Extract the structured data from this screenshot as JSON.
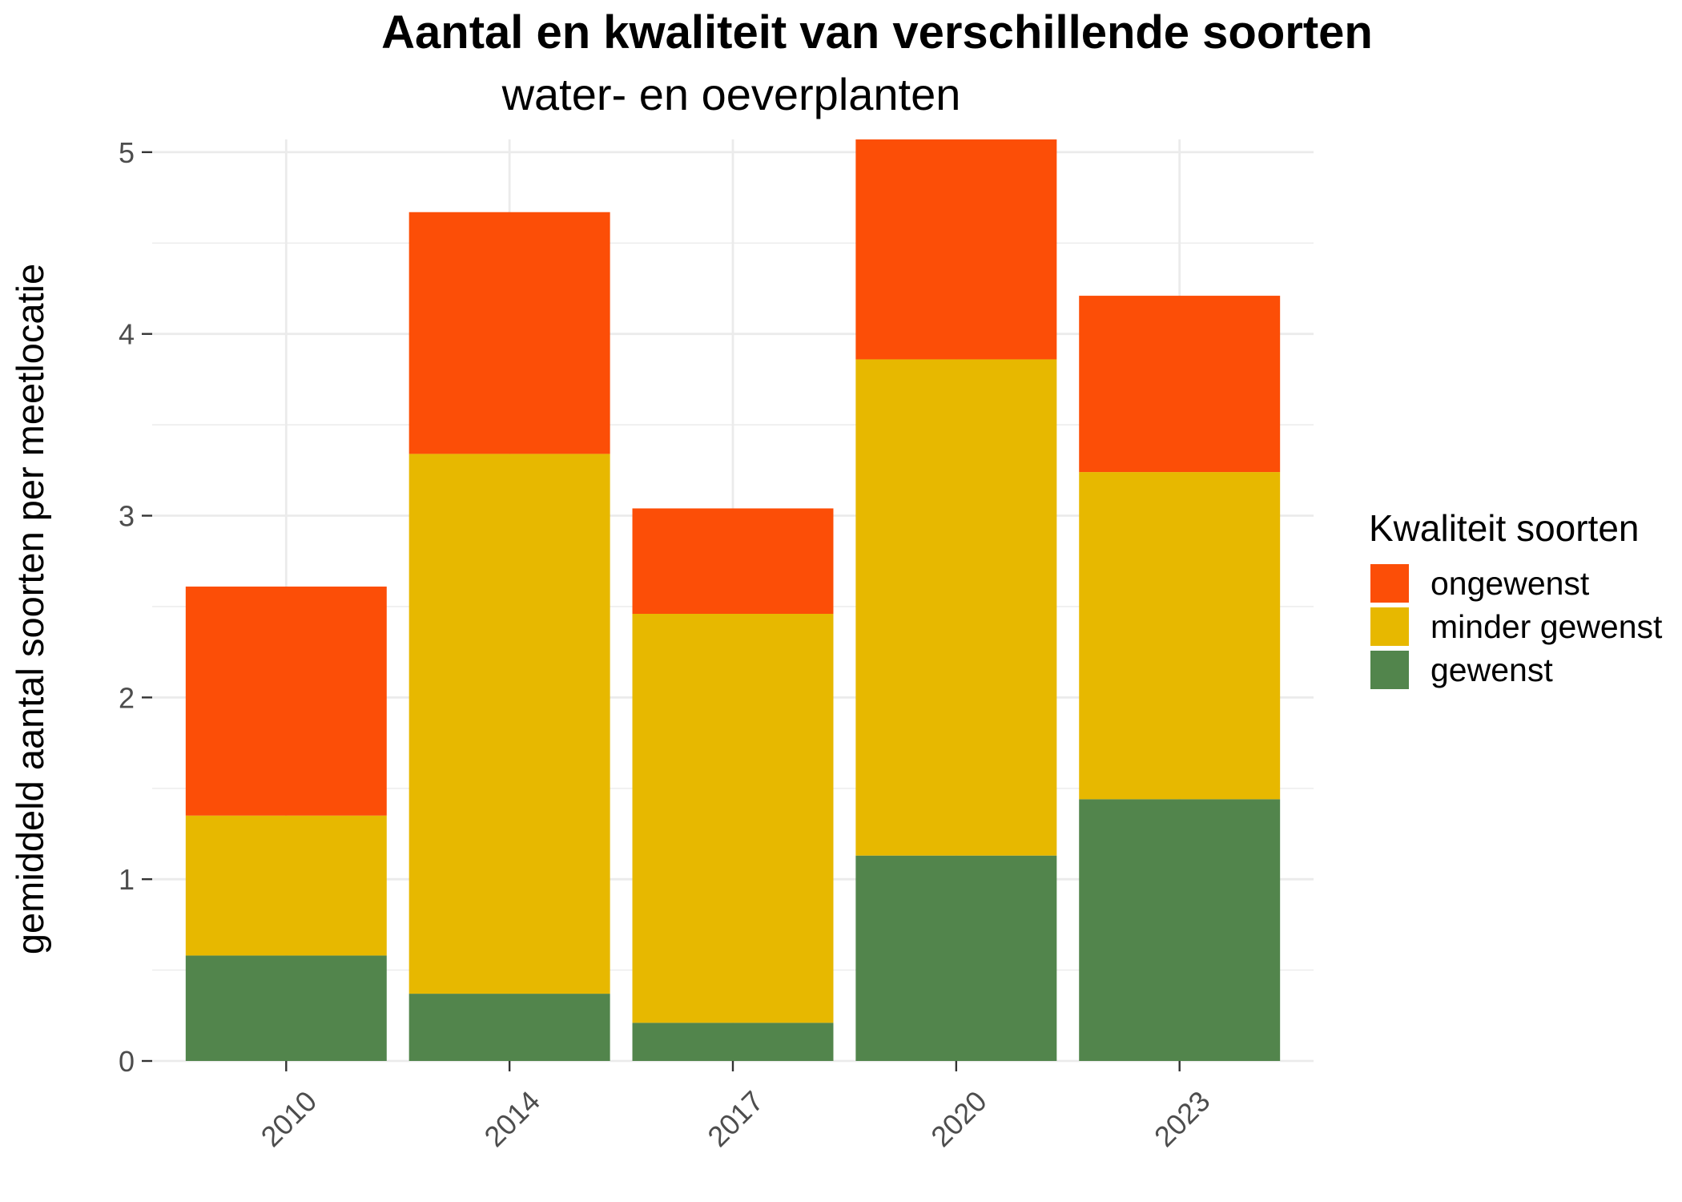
{
  "chart_data": {
    "type": "bar",
    "stacked": true,
    "title": "Aantal en kwaliteit van verschillende soorten",
    "subtitle": "water- en oeverplanten",
    "ylabel": "gemiddeld aantal soorten per meetlocatie",
    "categories": [
      "2010",
      "2014",
      "2017",
      "2020",
      "2023"
    ],
    "ylim": [
      0,
      5.07
    ],
    "yticks": [
      0,
      1,
      2,
      3,
      4,
      5
    ],
    "grid": true,
    "legend": {
      "title": "Kwaliteit soorten",
      "position": "right"
    },
    "series": [
      {
        "name": "gewenst",
        "color": "#52854C",
        "values": [
          0.58,
          0.37,
          0.21,
          1.13,
          1.44
        ]
      },
      {
        "name": "minder gewenst",
        "color": "#E7B800",
        "values": [
          0.77,
          2.97,
          2.25,
          2.73,
          1.8
        ]
      },
      {
        "name": "ongewenst",
        "color": "#FC4E07",
        "values": [
          1.26,
          1.33,
          0.58,
          1.21,
          0.97
        ]
      }
    ]
  }
}
